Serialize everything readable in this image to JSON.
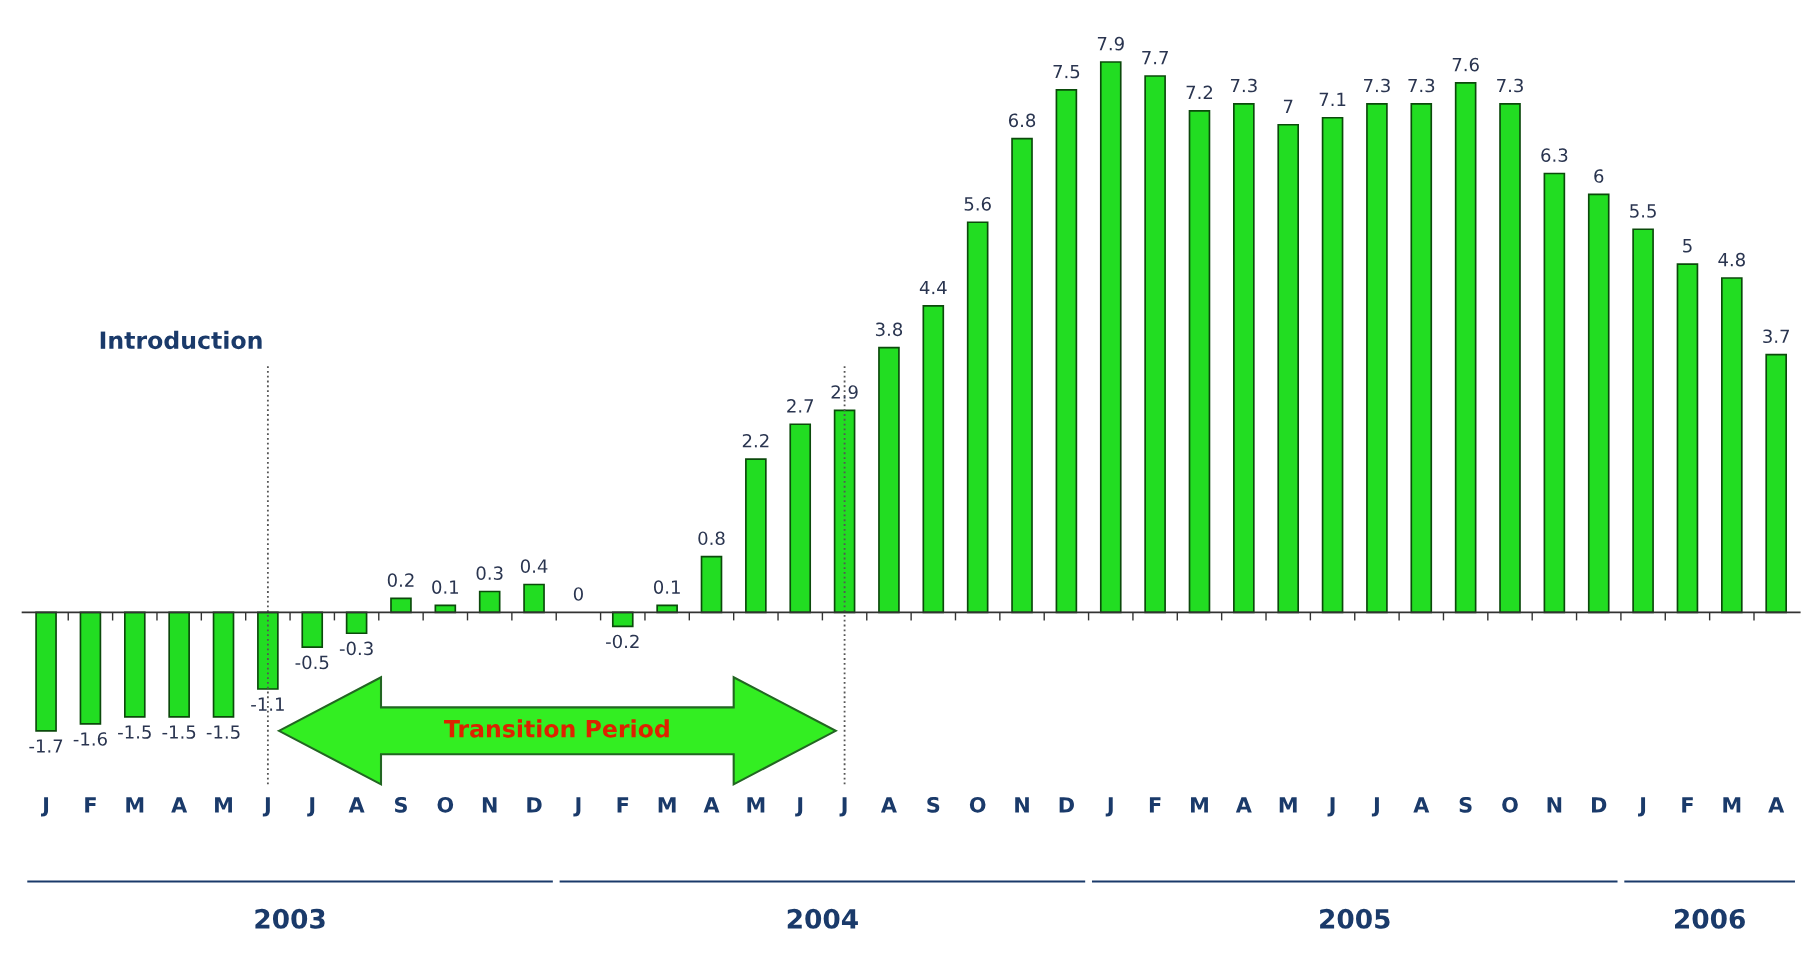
{
  "chart_data": {
    "type": "bar",
    "categories": [
      "J",
      "F",
      "M",
      "A",
      "M",
      "J",
      "J",
      "A",
      "S",
      "O",
      "N",
      "D",
      "J",
      "F",
      "M",
      "A",
      "M",
      "J",
      "J",
      "A",
      "S",
      "O",
      "N",
      "D",
      "J",
      "F",
      "M",
      "A",
      "M",
      "J",
      "J",
      "A",
      "S",
      "O",
      "N",
      "D",
      "J",
      "F",
      "M",
      "A"
    ],
    "values": [
      -1.7,
      -1.6,
      -1.5,
      -1.5,
      -1.5,
      -1.1,
      -0.5,
      -0.3,
      0.2,
      0.1,
      0.3,
      0.4,
      0,
      -0.2,
      0.1,
      0.8,
      2.2,
      2.7,
      2.9,
      3.8,
      4.4,
      5.6,
      6.8,
      7.5,
      7.9,
      7.7,
      7.2,
      7.3,
      7,
      7.1,
      7.3,
      7.3,
      7.6,
      7.3,
      6.3,
      6,
      5.5,
      5,
      4.8,
      3.7
    ],
    "color": "#22dd22",
    "data_labels": true,
    "annotations": [
      "2003",
      "2004",
      "2005",
      "2006",
      "Transition Period",
      "Introduction"
    ],
    "grid": false
  }
}
